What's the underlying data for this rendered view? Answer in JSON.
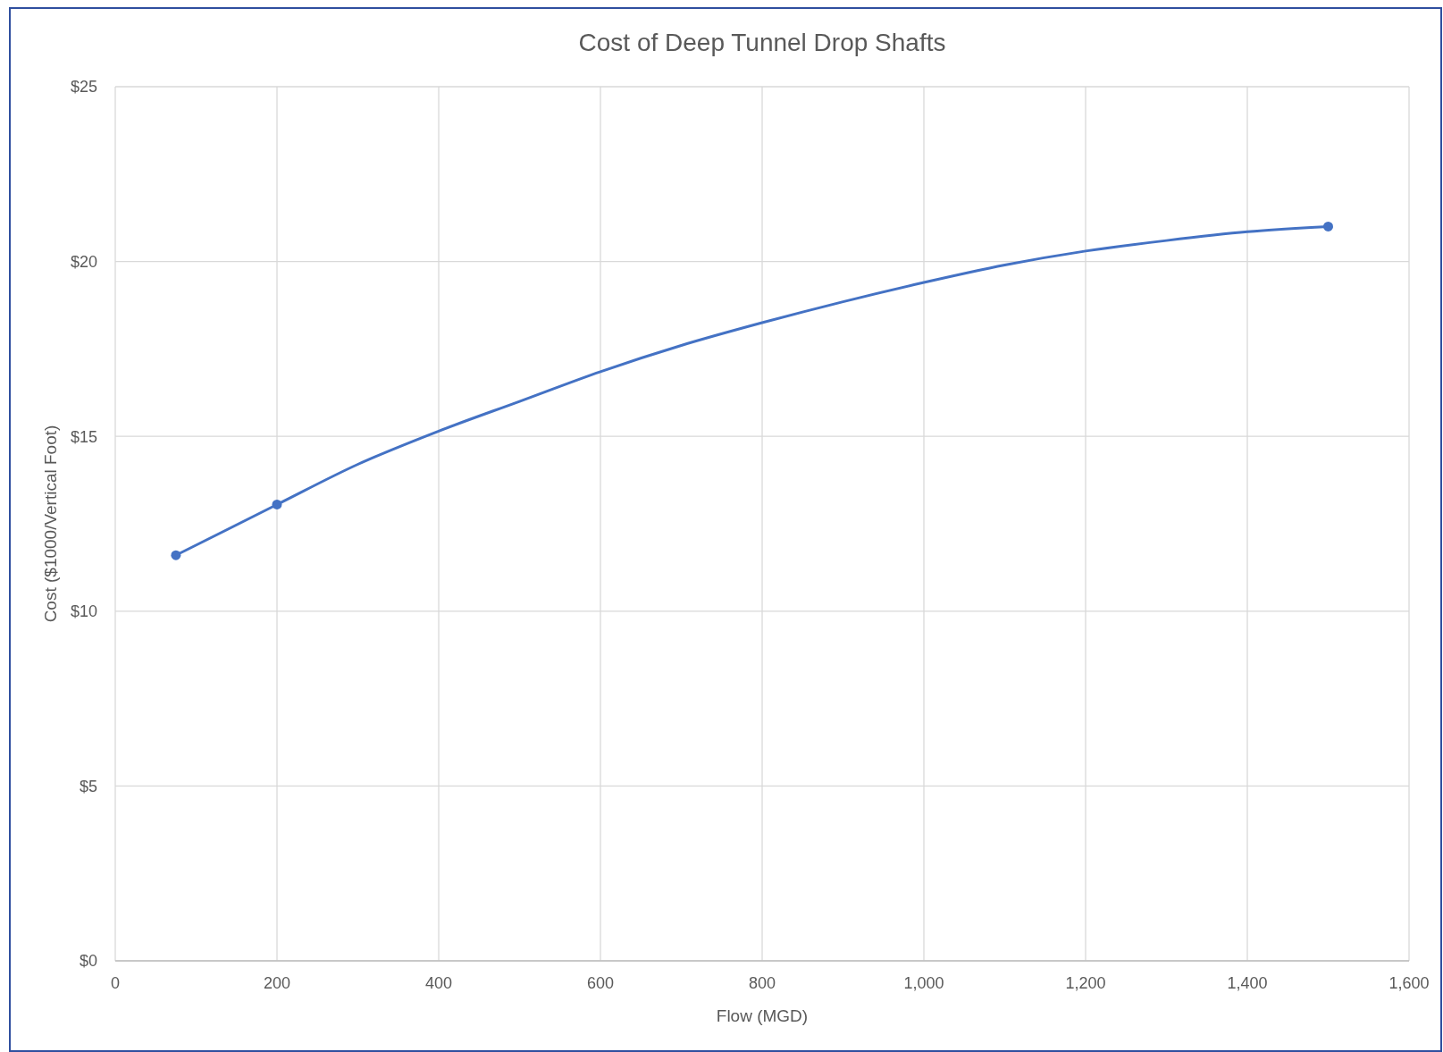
{
  "chart_data": {
    "type": "line",
    "title": "Cost of Deep Tunnel Drop Shafts",
    "xlabel": "Flow (MGD)",
    "ylabel": "Cost ($1000/Vertical Foot)",
    "xlim": [
      0,
      1600
    ],
    "xticks": [
      0,
      200,
      400,
      600,
      800,
      {
        "value": 1000,
        "label": "1,000"
      },
      {
        "value": 1200,
        "label": "1,200"
      },
      {
        "value": 1400,
        "label": "1,400"
      },
      {
        "value": 1600,
        "label": "1,600"
      }
    ],
    "ylim": [
      0,
      25
    ],
    "yticks": [
      {
        "value": 0,
        "label": "$0"
      },
      {
        "value": 5,
        "label": "$5"
      },
      {
        "value": 10,
        "label": "$10"
      },
      {
        "value": 15,
        "label": "$15"
      },
      {
        "value": 20,
        "label": "$20"
      },
      {
        "value": 25,
        "label": "$25"
      }
    ],
    "grid": true,
    "series": [
      {
        "color": "#4472c4",
        "marker": "none",
        "x": [
          75,
          200,
          300,
          400,
          500,
          600,
          700,
          800,
          900,
          1000,
          1100,
          1200,
          1300,
          1400,
          1500
        ],
        "values": [
          11.6,
          13.05,
          14.2,
          15.15,
          16.0,
          16.85,
          17.6,
          18.25,
          18.85,
          19.4,
          19.9,
          20.3,
          20.6,
          20.85,
          21.0
        ]
      },
      {
        "type": "scatter",
        "color": "#4472c4",
        "marker": "circle",
        "x": [
          75,
          200,
          1500
        ],
        "values": [
          11.6,
          13.05,
          21.0
        ]
      }
    ]
  }
}
